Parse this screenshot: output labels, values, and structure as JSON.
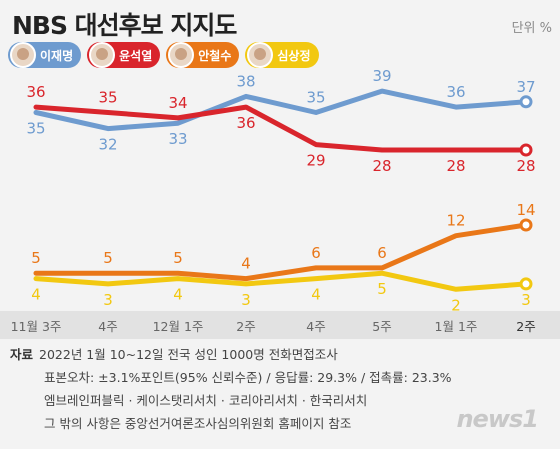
{
  "header": {
    "title": "NBS 대선후보 지지도",
    "unit": "단위 %"
  },
  "legend": [
    {
      "name": "이재명",
      "color": "#6e9bcf"
    },
    {
      "name": "윤석열",
      "color": "#d9252c"
    },
    {
      "name": "안철수",
      "color": "#e97718"
    },
    {
      "name": "심상정",
      "color": "#f2c811"
    }
  ],
  "chart_data": {
    "type": "line",
    "categories": [
      "11월 3주",
      "4주",
      "12월 1주",
      "2주",
      "4주",
      "5주",
      "1월 1주",
      "2주"
    ],
    "ylim": [
      0,
      42
    ],
    "series": [
      {
        "name": "이재명",
        "color": "#6e9bcf",
        "values": [
          35,
          32,
          33,
          38,
          35,
          39,
          36,
          37
        ]
      },
      {
        "name": "윤석열",
        "color": "#d9252c",
        "values": [
          36,
          35,
          34,
          36,
          29,
          28,
          28,
          28
        ]
      },
      {
        "name": "안철수",
        "color": "#e97718",
        "values": [
          5,
          5,
          5,
          4,
          6,
          6,
          12,
          14
        ]
      },
      {
        "name": "심상정",
        "color": "#f2c811",
        "values": [
          4,
          3,
          4,
          3,
          4,
          5,
          2,
          3
        ]
      }
    ]
  },
  "footer": {
    "label": "자료",
    "lines": [
      "2022년 1월 10~12일 전국 성인 1000명 전화면접조사",
      "표본오차: ±3.1%포인트(95% 신뢰수준) / 응답률: 29.3% / 접촉률: 23.3%",
      "엠브레인퍼블릭 · 케이스탯리서치 · 코리아리서치 · 한국리서치",
      "그 밖의 사항은 중앙선거여론조사심의위원회 홈페이지 참조"
    ]
  },
  "logo": "news1"
}
